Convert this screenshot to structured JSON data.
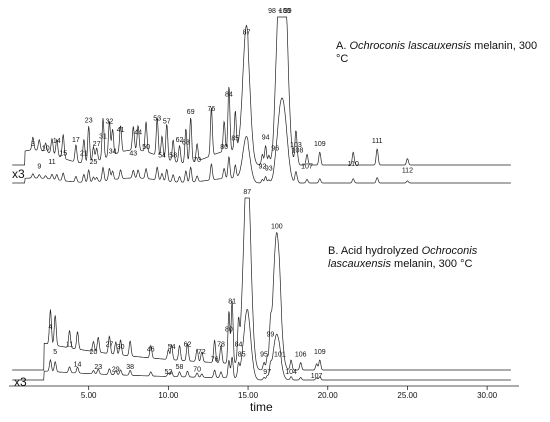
{
  "chart_data": [
    {
      "type": "line",
      "panel": "A",
      "title_prefix": "A. ",
      "title_italic": "Ochroconis lascauxensis",
      "title_suffix": " melanin, 300 °C",
      "scale_label": "x3",
      "baseline": 140,
      "peaks": [
        {
          "x": 1.5,
          "h": 12,
          "label": "3"
        },
        {
          "x": 1.9,
          "h": 10,
          "label": "9"
        },
        {
          "x": 2.3,
          "h": 8,
          "label": "10"
        },
        {
          "x": 2.7,
          "h": 14,
          "label": "11"
        },
        {
          "x": 3.0,
          "h": 15,
          "label": "14"
        },
        {
          "x": 3.4,
          "h": 22,
          "label": "15"
        },
        {
          "x": 4.2,
          "h": 16,
          "label": "17"
        },
        {
          "x": 4.7,
          "h": 22,
          "label": "21"
        },
        {
          "x": 5.0,
          "h": 34,
          "label": "23"
        },
        {
          "x": 5.3,
          "h": 14,
          "label": "25"
        },
        {
          "x": 5.5,
          "h": 12,
          "label": "27"
        },
        {
          "x": 5.9,
          "h": 38,
          "label": "31"
        },
        {
          "x": 6.3,
          "h": 33,
          "label": "32"
        },
        {
          "x": 6.5,
          "h": 24,
          "label": "34"
        },
        {
          "x": 7.0,
          "h": 25,
          "label": "41"
        },
        {
          "x": 7.8,
          "h": 22,
          "label": "43"
        },
        {
          "x": 8.1,
          "h": 23,
          "label": "44"
        },
        {
          "x": 8.6,
          "h": 28,
          "label": "50"
        },
        {
          "x": 9.3,
          "h": 36,
          "label": "53"
        },
        {
          "x": 9.6,
          "h": 20,
          "label": "54"
        },
        {
          "x": 9.9,
          "h": 33,
          "label": "57"
        },
        {
          "x": 10.3,
          "h": 20,
          "label": "58"
        },
        {
          "x": 10.7,
          "h": 16,
          "label": "62"
        },
        {
          "x": 11.1,
          "h": 32,
          "label": "68"
        },
        {
          "x": 11.4,
          "h": 42,
          "label": "69"
        },
        {
          "x": 11.8,
          "h": 16,
          "label": "70"
        },
        {
          "x": 12.7,
          "h": 45,
          "label": "76"
        },
        {
          "x": 13.5,
          "h": 28,
          "label": "80"
        },
        {
          "x": 13.8,
          "h": 60,
          "label": "84"
        },
        {
          "x": 14.2,
          "h": 36,
          "label": "85"
        },
        {
          "x": 14.9,
          "h": 118,
          "label": "87"
        },
        {
          "x": 15.9,
          "h": 10,
          "label": "92"
        },
        {
          "x": 16.1,
          "h": 18,
          "label": "94"
        },
        {
          "x": 16.3,
          "h": 8,
          "label": "93"
        },
        {
          "x": 16.7,
          "h": 8,
          "label": "96"
        },
        {
          "x": 17.0,
          "h": 160,
          "label": "98 + 99"
        },
        {
          "x": 17.3,
          "h": 140,
          "label": "100"
        },
        {
          "x": 18.0,
          "h": 30,
          "label": "103"
        },
        {
          "x": 18.1,
          "h": 6,
          "label": "108"
        },
        {
          "x": 18.7,
          "h": 10,
          "label": "107"
        },
        {
          "x": 19.5,
          "h": 12,
          "label": "109"
        },
        {
          "x": 21.6,
          "h": 12,
          "label": "110"
        },
        {
          "x": 23.1,
          "h": 15,
          "label": "111"
        },
        {
          "x": 25.0,
          "h": 6,
          "label": "112"
        }
      ]
    },
    {
      "type": "line",
      "panel": "B",
      "title_prefix": "B. Acid hydrolyzed ",
      "title_italic": "Ochroconis lascauxensis",
      "title_suffix": " melanin, 300 °C",
      "scale_label": "x3",
      "baseline": 140,
      "peaks": [
        {
          "x": 2.6,
          "h": 28,
          "label": "4"
        },
        {
          "x": 2.9,
          "h": 24,
          "label": "5"
        },
        {
          "x": 3.8,
          "h": 14,
          "label": "11"
        },
        {
          "x": 4.3,
          "h": 14,
          "label": "14"
        },
        {
          "x": 5.3,
          "h": 8,
          "label": "20"
        },
        {
          "x": 5.6,
          "h": 12,
          "label": "23"
        },
        {
          "x": 6.3,
          "h": 14,
          "label": "27"
        },
        {
          "x": 6.7,
          "h": 10,
          "label": "29"
        },
        {
          "x": 7.0,
          "h": 12,
          "label": "30"
        },
        {
          "x": 7.6,
          "h": 12,
          "label": "38"
        },
        {
          "x": 8.9,
          "h": 10,
          "label": "46"
        },
        {
          "x": 10.0,
          "h": 8,
          "label": "52"
        },
        {
          "x": 10.2,
          "h": 12,
          "label": "54"
        },
        {
          "x": 10.7,
          "h": 12,
          "label": "58"
        },
        {
          "x": 11.2,
          "h": 14,
          "label": "62"
        },
        {
          "x": 11.8,
          "h": 10,
          "label": "70"
        },
        {
          "x": 12.1,
          "h": 8,
          "label": "72"
        },
        {
          "x": 12.9,
          "h": 18,
          "label": "76"
        },
        {
          "x": 13.3,
          "h": 14,
          "label": "78"
        },
        {
          "x": 13.8,
          "h": 42,
          "label": "80"
        },
        {
          "x": 14.0,
          "h": 50,
          "label": "81"
        },
        {
          "x": 14.4,
          "h": 30,
          "label": "84"
        },
        {
          "x": 14.6,
          "h": 6,
          "label": "85"
        },
        {
          "x": 14.95,
          "h": 165,
          "label": "87"
        },
        {
          "x": 16.0,
          "h": 6,
          "label": "95"
        },
        {
          "x": 16.2,
          "h": 8,
          "label": "97"
        },
        {
          "x": 16.4,
          "h": 22,
          "label": "99"
        },
        {
          "x": 16.8,
          "h": 110,
          "label": "100"
        },
        {
          "x": 17.0,
          "h": 6,
          "label": "101"
        },
        {
          "x": 17.7,
          "h": 8,
          "label": "104"
        },
        {
          "x": 18.3,
          "h": 6,
          "label": "106"
        },
        {
          "x": 19.3,
          "h": 5,
          "label": "107"
        },
        {
          "x": 19.5,
          "h": 8,
          "label": "109"
        }
      ]
    }
  ],
  "x_axis": {
    "label": "time",
    "range": [
      0,
      32
    ],
    "ticks": [
      {
        "value": 5,
        "label": "5.00"
      },
      {
        "value": 10,
        "label": "10.00"
      },
      {
        "value": 15,
        "label": "15.00"
      },
      {
        "value": 20,
        "label": "20.00"
      },
      {
        "value": 25,
        "label": "25.00"
      },
      {
        "value": 30,
        "label": "30.00"
      }
    ]
  }
}
